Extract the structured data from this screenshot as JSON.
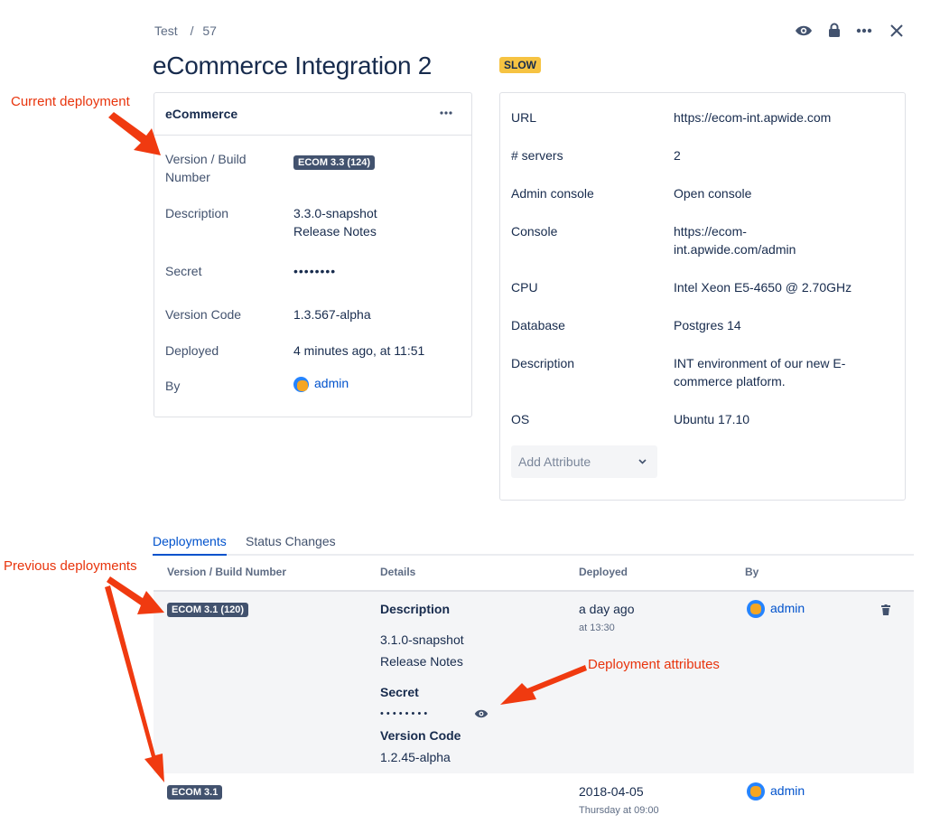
{
  "breadcrumb": {
    "project": "Test",
    "id": "57",
    "separator": "/"
  },
  "title": "eCommerce Integration 2",
  "status_badge": {
    "label": "SLOW",
    "color": "#f6c342"
  },
  "header_icons": [
    "eye-icon",
    "lock-icon",
    "more-icon",
    "close-icon"
  ],
  "current_deployment": {
    "app_name": "eCommerce",
    "rows": [
      {
        "label": "Version / Build Number",
        "value": "ECOM 3.3 (124)"
      },
      {
        "label": "Description",
        "value": "3.3.0-snapshot",
        "link": "Release Notes"
      },
      {
        "label": "Secret",
        "value": "••••••••"
      },
      {
        "label": "Version Code",
        "value": "1.3.567-alpha"
      },
      {
        "label": "Deployed",
        "value": "4 minutes ago, at 11:51"
      },
      {
        "label": "By",
        "value": "admin"
      }
    ]
  },
  "environment_attributes": [
    {
      "label": "URL",
      "value": "https://ecom-int.apwide.com",
      "link": true
    },
    {
      "label": "# servers",
      "value": "2"
    },
    {
      "label": "Admin console",
      "value": "Open console",
      "link": true
    },
    {
      "label": "Console",
      "value": "https://ecom-int.apwide.com/admin",
      "link": true
    },
    {
      "label": "CPU",
      "value": "Intel Xeon E5-4650 @ 2.70GHz"
    },
    {
      "label": "Database",
      "value": "Postgres 14"
    },
    {
      "label": "Description",
      "value": "INT environment of our new E-commerce platform."
    },
    {
      "label": "OS",
      "value": "Ubuntu 17.10"
    }
  ],
  "add_attribute": "Add Attribute",
  "tabs": [
    {
      "label": "Deployments",
      "active": true
    },
    {
      "label": "Status Changes",
      "active": false
    }
  ],
  "table": {
    "headers": [
      "Version / Build Number",
      "Details",
      "Deployed",
      "By"
    ],
    "rows": [
      {
        "version": "ECOM 3.1 (120)",
        "details": {
          "desc_label": "Description",
          "desc": "3.1.0-snapshot",
          "link": "Release Notes",
          "secret_label": "Secret",
          "secret": "• • • • • • • •",
          "code_label": "Version Code",
          "code": "1.2.45-alpha"
        },
        "deployed": "a day ago",
        "deployed_sub": "at 13:30",
        "by": "admin"
      },
      {
        "version": "ECOM 3.1",
        "deployed": "2018-04-05",
        "deployed_sub": "Thursday at 09:00",
        "by": "admin"
      }
    ]
  },
  "annotations": {
    "current": "Current deployment",
    "previous": "Previous deployments",
    "attributes": "Deployment attributes",
    "color": "#e8340c"
  }
}
